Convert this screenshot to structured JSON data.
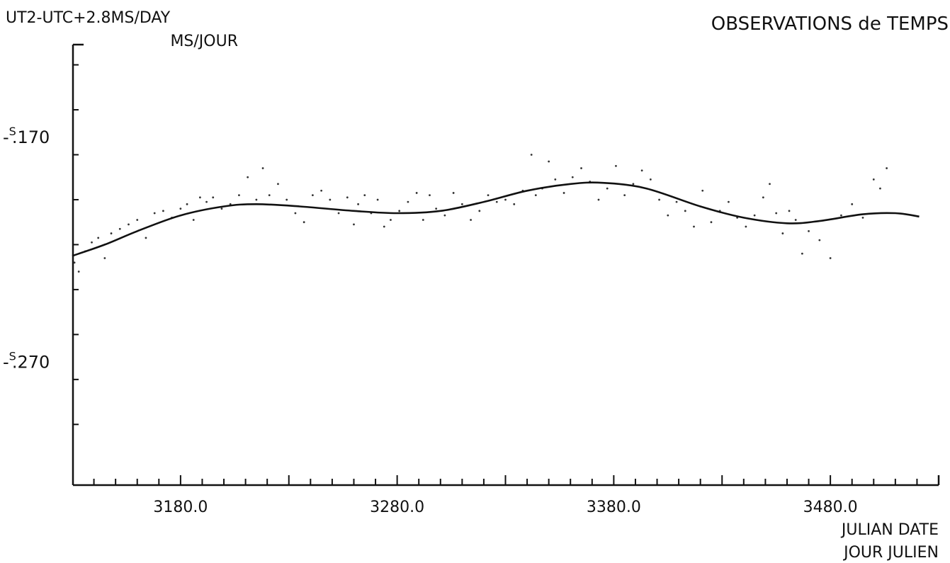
{
  "chart_data": {
    "type": "line",
    "title": "OBSERVATIONS de TEMPS",
    "ylabel_line1": "UT2-UTC+2.8MS/DAY",
    "ylabel_line2": "MS/JOUR",
    "xlabel_line1": "JULIAN DATE",
    "xlabel_line2": "JOUR JULIEN",
    "ytick_labels": [
      {
        "value": -0.17,
        "text": ".170",
        "sign": "-",
        "sup": "S"
      },
      {
        "value": -0.27,
        "text": ".270",
        "sign": "-",
        "sup": "S"
      }
    ],
    "xtick_labels": [
      {
        "value": 3180.0,
        "text": "3180.0"
      },
      {
        "value": 3280.0,
        "text": "3280.0"
      },
      {
        "value": 3380.0,
        "text": "3380.0"
      },
      {
        "value": 3480.0,
        "text": "3480.0"
      }
    ],
    "xlim": [
      3130,
      3530
    ],
    "ylim": [
      -0.325,
      -0.129
    ],
    "x_minor_step": 10,
    "y_minor_step": 0.02,
    "grid": false,
    "series": [
      {
        "kind": "smooth-fit",
        "x": [
          3130,
          3145,
          3160,
          3180,
          3200,
          3215,
          3235,
          3260,
          3280,
          3300,
          3320,
          3340,
          3360,
          3375,
          3395,
          3420,
          3440,
          3460,
          3475,
          3495,
          3510,
          3521
        ],
        "y": [
          -0.223,
          -0.218,
          -0.212,
          -0.205,
          -0.201,
          -0.2,
          -0.201,
          -0.203,
          -0.204,
          -0.203,
          -0.199,
          -0.194,
          -0.191,
          -0.1905,
          -0.193,
          -0.201,
          -0.206,
          -0.2085,
          -0.2075,
          -0.2045,
          -0.204,
          -0.2055
        ]
      },
      {
        "kind": "observations",
        "x": [
          3131,
          3133,
          3136,
          3139,
          3142,
          3145,
          3148,
          3152,
          3156,
          3160,
          3164,
          3168,
          3172,
          3176,
          3180,
          3183,
          3186,
          3189,
          3192,
          3195,
          3199,
          3203,
          3207,
          3211,
          3215,
          3218,
          3221,
          3225,
          3229,
          3233,
          3237,
          3241,
          3245,
          3249,
          3253,
          3257,
          3260,
          3262,
          3265,
          3268,
          3271,
          3274,
          3277,
          3281,
          3285,
          3289,
          3292,
          3295,
          3298,
          3302,
          3306,
          3310,
          3314,
          3318,
          3322,
          3326,
          3330,
          3334,
          3338,
          3342,
          3344,
          3347,
          3350,
          3353,
          3357,
          3361,
          3365,
          3369,
          3373,
          3377,
          3381,
          3385,
          3389,
          3393,
          3397,
          3401,
          3405,
          3409,
          3413,
          3417,
          3421,
          3425,
          3429,
          3433,
          3437,
          3441,
          3445,
          3449,
          3452,
          3455,
          3458,
          3461,
          3464,
          3467,
          3470,
          3475,
          3480,
          3485,
          3490,
          3495,
          3500,
          3503,
          3506
        ],
        "y": [
          -0.226,
          -0.23,
          -0.221,
          -0.217,
          -0.215,
          -0.224,
          -0.213,
          -0.211,
          -0.209,
          -0.207,
          -0.215,
          -0.204,
          -0.203,
          -0.206,
          -0.202,
          -0.2,
          -0.207,
          -0.197,
          -0.199,
          -0.197,
          -0.202,
          -0.2,
          -0.196,
          -0.188,
          -0.198,
          -0.184,
          -0.196,
          -0.191,
          -0.198,
          -0.204,
          -0.208,
          -0.196,
          -0.194,
          -0.198,
          -0.204,
          -0.197,
          -0.209,
          -0.2,
          -0.196,
          -0.204,
          -0.198,
          -0.21,
          -0.207,
          -0.203,
          -0.199,
          -0.195,
          -0.207,
          -0.196,
          -0.202,
          -0.205,
          -0.195,
          -0.2,
          -0.207,
          -0.203,
          -0.196,
          -0.199,
          -0.198,
          -0.2,
          -0.194,
          -0.178,
          -0.196,
          -0.193,
          -0.181,
          -0.189,
          -0.195,
          -0.188,
          -0.184,
          -0.19,
          -0.198,
          -0.193,
          -0.183,
          -0.196,
          -0.191,
          -0.185,
          -0.189,
          -0.198,
          -0.205,
          -0.199,
          -0.203,
          -0.21,
          -0.194,
          -0.208,
          -0.203,
          -0.199,
          -0.206,
          -0.21,
          -0.205,
          -0.197,
          -0.191,
          -0.204,
          -0.213,
          -0.203,
          -0.207,
          -0.222,
          -0.212,
          -0.216,
          -0.224,
          -0.205,
          -0.2,
          -0.206,
          -0.189,
          -0.193,
          -0.184
        ]
      }
    ],
    "colors": {
      "ink": "#111111",
      "background": "#ffffff"
    }
  }
}
